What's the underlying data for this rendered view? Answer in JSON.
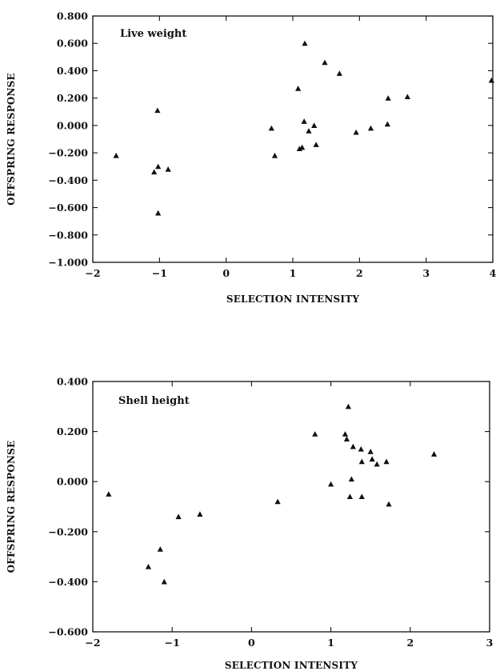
{
  "chart_data": [
    {
      "type": "scatter",
      "title": "Live weight",
      "xlabel": "SELECTION INTENSITY",
      "ylabel": "OFFSPRING RESPONSE",
      "xlim": [
        -2,
        4
      ],
      "ylim": [
        -1.0,
        0.8
      ],
      "xticks": [
        -2,
        -1,
        0,
        1,
        2,
        3,
        4
      ],
      "xtick_labels": [
        "-2",
        "-1",
        "0",
        "1",
        "2",
        "3",
        "4"
      ],
      "yticks": [
        -1.0,
        -0.8,
        -0.6,
        -0.4,
        -0.2,
        0.0,
        0.2,
        0.4,
        0.6,
        0.8
      ],
      "ytick_labels": [
        "-1.000",
        "-0.800",
        "-0.600",
        "-0.400",
        "-0.200",
        "0.000",
        "0.200",
        "0.400",
        "0.600",
        "0.800"
      ],
      "grid": false,
      "marker": "triangle",
      "points": [
        {
          "x": -1.65,
          "y": -0.22
        },
        {
          "x": -1.03,
          "y": 0.11
        },
        {
          "x": -1.08,
          "y": -0.34
        },
        {
          "x": -1.02,
          "y": -0.3
        },
        {
          "x": -0.87,
          "y": -0.32
        },
        {
          "x": -1.02,
          "y": -0.64
        },
        {
          "x": 0.68,
          "y": -0.02
        },
        {
          "x": 0.73,
          "y": -0.22
        },
        {
          "x": 1.08,
          "y": 0.27
        },
        {
          "x": 1.1,
          "y": -0.17
        },
        {
          "x": 1.14,
          "y": -0.16
        },
        {
          "x": 1.17,
          "y": 0.03
        },
        {
          "x": 1.18,
          "y": 0.6
        },
        {
          "x": 1.24,
          "y": -0.04
        },
        {
          "x": 1.32,
          "y": 0.0
        },
        {
          "x": 1.35,
          "y": -0.14
        },
        {
          "x": 1.48,
          "y": 0.46
        },
        {
          "x": 1.7,
          "y": 0.38
        },
        {
          "x": 1.95,
          "y": -0.05
        },
        {
          "x": 2.17,
          "y": -0.02
        },
        {
          "x": 2.42,
          "y": 0.01
        },
        {
          "x": 2.43,
          "y": 0.2
        },
        {
          "x": 2.72,
          "y": 0.21
        },
        {
          "x": 3.98,
          "y": 0.33
        }
      ]
    },
    {
      "type": "scatter",
      "title": "Shell height",
      "xlabel": "SELECTION INTENSITY",
      "ylabel": "OFFSPRING RESPONSE",
      "xlim": [
        -2,
        3
      ],
      "ylim": [
        -0.6,
        0.4
      ],
      "xticks": [
        -2,
        -1,
        0,
        1,
        2,
        3
      ],
      "xtick_labels": [
        "-2",
        "-1",
        "0",
        "1",
        "2",
        "3"
      ],
      "yticks": [
        -0.6,
        -0.4,
        -0.2,
        0.0,
        0.2,
        0.4
      ],
      "ytick_labels": [
        "-0.600",
        "-0.400",
        "-0.200",
        "0.000",
        "0.200",
        "0.400"
      ],
      "grid": false,
      "marker": "triangle",
      "points": [
        {
          "x": -1.8,
          "y": -0.05
        },
        {
          "x": -1.3,
          "y": -0.34
        },
        {
          "x": -1.15,
          "y": -0.27
        },
        {
          "x": -1.1,
          "y": -0.4
        },
        {
          "x": -0.92,
          "y": -0.14
        },
        {
          "x": -0.65,
          "y": -0.13
        },
        {
          "x": 0.33,
          "y": -0.08
        },
        {
          "x": 0.8,
          "y": 0.19
        },
        {
          "x": 1.0,
          "y": -0.01
        },
        {
          "x": 1.18,
          "y": 0.19
        },
        {
          "x": 1.2,
          "y": 0.17
        },
        {
          "x": 1.22,
          "y": 0.3
        },
        {
          "x": 1.24,
          "y": -0.06
        },
        {
          "x": 1.26,
          "y": 0.01
        },
        {
          "x": 1.28,
          "y": 0.14
        },
        {
          "x": 1.38,
          "y": 0.13
        },
        {
          "x": 1.39,
          "y": 0.08
        },
        {
          "x": 1.39,
          "y": -0.06
        },
        {
          "x": 1.5,
          "y": 0.12
        },
        {
          "x": 1.52,
          "y": 0.09
        },
        {
          "x": 1.58,
          "y": 0.07
        },
        {
          "x": 1.7,
          "y": 0.08
        },
        {
          "x": 1.73,
          "y": -0.09
        },
        {
          "x": 2.3,
          "y": 0.11
        }
      ]
    }
  ]
}
